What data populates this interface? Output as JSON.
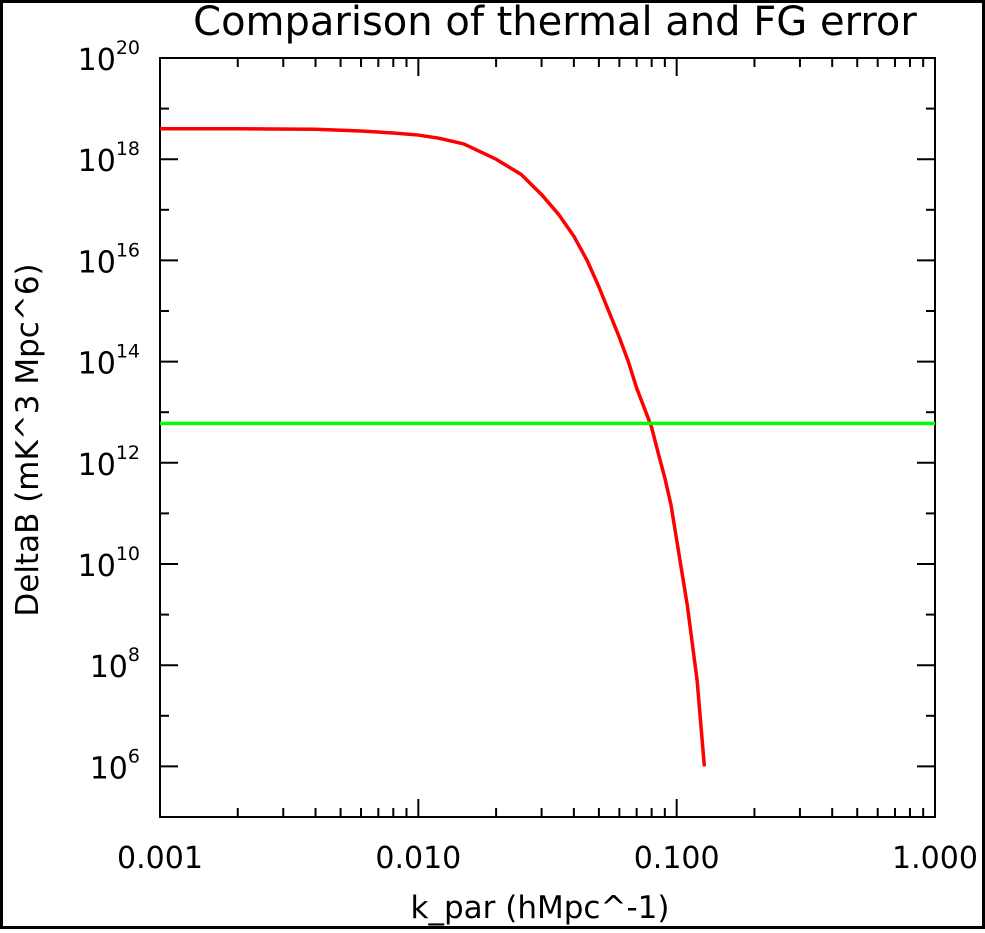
{
  "chart_data": {
    "type": "line",
    "title": "Comparison of thermal and FG error",
    "xlabel": "k_par (hMpc^-1)",
    "ylabel": "DeltaB (mK^3 Mpc^6)",
    "x_scale": "log",
    "y_scale": "log",
    "xlim": [
      0.001,
      1.0
    ],
    "ylim": [
      100000.0,
      1e+20
    ],
    "x_ticks": [
      0.001,
      0.01,
      0.1,
      1.0
    ],
    "x_tick_labels": [
      "0.001",
      "0.010",
      "0.100",
      "1.000"
    ],
    "y_ticks": [
      1000000.0,
      100000000.0,
      10000000000.0,
      1000000000000.0,
      100000000000000.0,
      1e+16,
      1e+18,
      1e+20
    ],
    "y_tick_labels": [
      {
        "base": "10",
        "exp": "6"
      },
      {
        "base": "10",
        "exp": "8"
      },
      {
        "base": "10",
        "exp": "10"
      },
      {
        "base": "10",
        "exp": "12"
      },
      {
        "base": "10",
        "exp": "14"
      },
      {
        "base": "10",
        "exp": "16"
      },
      {
        "base": "10",
        "exp": "18"
      },
      {
        "base": "10",
        "exp": "20"
      }
    ],
    "grid": false,
    "legend": "none",
    "series": [
      {
        "color": "#ff0000",
        "x": [
          0.001,
          0.002,
          0.004,
          0.006,
          0.008,
          0.01,
          0.012,
          0.015,
          0.02,
          0.025,
          0.03,
          0.035,
          0.04,
          0.045,
          0.05,
          0.055,
          0.06,
          0.065,
          0.07,
          0.075,
          0.08,
          0.085,
          0.09,
          0.095,
          0.1,
          0.11,
          0.12,
          0.128
        ],
        "y": [
          4e+18,
          4e+18,
          3.9e+18,
          3.6e+18,
          3.3e+18,
          3e+18,
          2.6e+18,
          2e+18,
          1e+18,
          5e+17,
          2e+17,
          8e+16,
          3e+16,
          1e+16,
          3000000000000000.0,
          900000000000000.0,
          300000000000000.0,
          100000000000000.0,
          30000000000000.0,
          12000000000000.0,
          5000000000000.0,
          1500000000000.0,
          500000000000.0,
          150000000000.0,
          30000000000.0,
          1500000000.0,
          50000000.0,
          1000000.0
        ]
      },
      {
        "color": "#00ff00",
        "x": [
          0.001,
          1.0
        ],
        "y": [
          6000000000000.0,
          6000000000000.0
        ]
      }
    ]
  }
}
